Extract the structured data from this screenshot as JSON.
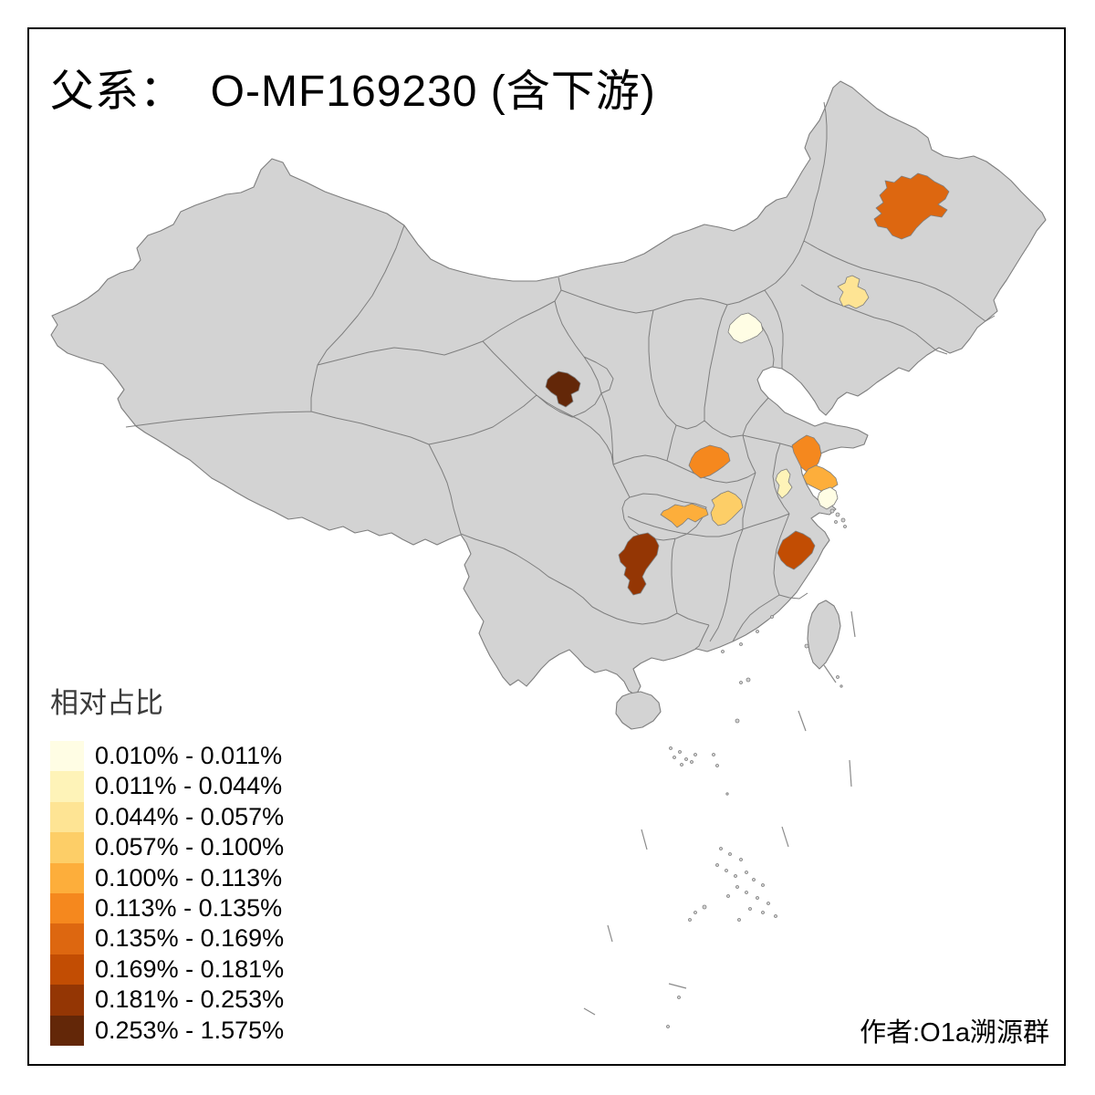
{
  "title": "父系：  O-MF169230 (含下游)",
  "author": "作者:O1a溯源群",
  "legend": {
    "title": "相对占比",
    "classes": [
      {
        "label": "0.010% - 0.011%",
        "color": "#FFFDE4"
      },
      {
        "label": "0.011% - 0.044%",
        "color": "#FEF3B8"
      },
      {
        "label": "0.044% - 0.057%",
        "color": "#FEE494"
      },
      {
        "label": "0.057% - 0.100%",
        "color": "#FDCE67"
      },
      {
        "label": "0.100% - 0.113%",
        "color": "#FDAE3B"
      },
      {
        "label": "0.113% - 0.135%",
        "color": "#F5881E"
      },
      {
        "label": "0.135% - 0.169%",
        "color": "#DD6710"
      },
      {
        "label": "0.169% - 0.181%",
        "color": "#C24D03"
      },
      {
        "label": "0.181% - 0.253%",
        "color": "#943604"
      },
      {
        "label": "0.253% - 1.575%",
        "color": "#632708"
      }
    ]
  },
  "map": {
    "base_fill": "#D3D3D3",
    "border_color": "#7E7E7E",
    "background": "#FFFFFF",
    "frame_color": "#000000",
    "regions": [
      {
        "id": "heilongjiang-blob",
        "class_index": 6,
        "range": "0.135% - 0.169%"
      },
      {
        "id": "jilin-blob",
        "class_index": 2,
        "range": "0.044% - 0.057%"
      },
      {
        "id": "beijing-blob",
        "class_index": 0,
        "range": "0.010% - 0.011%"
      },
      {
        "id": "gansu-blob",
        "class_index": 9,
        "range": "0.253% - 1.575%"
      },
      {
        "id": "henan-blob",
        "class_index": 5,
        "range": "0.113% - 0.135%"
      },
      {
        "id": "jiangsu-north-blob",
        "class_index": 5,
        "range": "0.113% - 0.135%"
      },
      {
        "id": "jiangsu-south-blob",
        "class_index": 4,
        "range": "0.100% - 0.113%"
      },
      {
        "id": "anhui-blob",
        "class_index": 1,
        "range": "0.011% - 0.044%"
      },
      {
        "id": "shanghai-blob",
        "class_index": 0,
        "range": "0.010% - 0.011%"
      },
      {
        "id": "hubei-blob",
        "class_index": 3,
        "range": "0.057% - 0.100%"
      },
      {
        "id": "chongqing-blob",
        "class_index": 4,
        "range": "0.100% - 0.113%"
      },
      {
        "id": "guizhou-blob",
        "class_index": 8,
        "range": "0.181% - 0.253%"
      },
      {
        "id": "zhejiang-blob",
        "class_index": 7,
        "range": "0.169% - 0.181%"
      }
    ]
  },
  "chart_data": {
    "type": "choropleth_map",
    "title": "父系：  O-MF169230 (含下游)",
    "legend_title": "相对占比",
    "class_ranges": [
      "0.010% - 0.011%",
      "0.011% - 0.044%",
      "0.044% - 0.057%",
      "0.057% - 0.100%",
      "0.100% - 0.113%",
      "0.113% - 0.135%",
      "0.135% - 0.169%",
      "0.169% - 0.181%",
      "0.181% - 0.253%",
      "0.253% - 1.575%"
    ],
    "class_colors": [
      "#FFFDE4",
      "#FEF3B8",
      "#FEE494",
      "#FDCE67",
      "#FDAE3B",
      "#F5881E",
      "#DD6710",
      "#C24D03",
      "#943604",
      "#632708"
    ],
    "highlighted_regions": [
      {
        "id": "heilongjiang-blob",
        "value_range": "0.135% - 0.169%"
      },
      {
        "id": "jilin-blob",
        "value_range": "0.044% - 0.057%"
      },
      {
        "id": "beijing-blob",
        "value_range": "0.010% - 0.011%"
      },
      {
        "id": "gansu-blob",
        "value_range": "0.253% - 1.575%"
      },
      {
        "id": "henan-blob",
        "value_range": "0.113% - 0.135%"
      },
      {
        "id": "jiangsu-north-blob",
        "value_range": "0.113% - 0.135%"
      },
      {
        "id": "jiangsu-south-blob",
        "value_range": "0.100% - 0.113%"
      },
      {
        "id": "anhui-blob",
        "value_range": "0.011% - 0.044%"
      },
      {
        "id": "shanghai-blob",
        "value_range": "0.010% - 0.011%"
      },
      {
        "id": "hubei-blob",
        "value_range": "0.057% - 0.100%"
      },
      {
        "id": "chongqing-blob",
        "value_range": "0.100% - 0.113%"
      },
      {
        "id": "guizhou-blob",
        "value_range": "0.181% - 0.253%"
      },
      {
        "id": "zhejiang-blob",
        "value_range": "0.169% - 0.181%"
      }
    ]
  }
}
